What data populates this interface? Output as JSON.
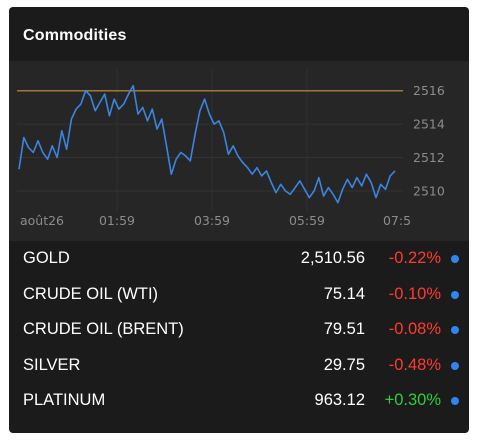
{
  "widget": {
    "title": "Commodities"
  },
  "chart_data": {
    "type": "line",
    "reference_level": 2516,
    "ylim": [
      2508.8,
      2517.3
    ],
    "y_ticks": [
      "2516",
      "2514",
      "2512",
      "2510"
    ],
    "x_ticks": [
      "août26",
      "01:59",
      "03:59",
      "05:59",
      "07:5"
    ],
    "grid": true,
    "colors": {
      "line": "#3a85e0",
      "reference": "#a0783a"
    },
    "series": [
      {
        "values": [
          2511.3,
          2513.2,
          2512.6,
          2512.3,
          2513.0,
          2512.3,
          2511.9,
          2512.7,
          2512.0,
          2513.6,
          2512.5,
          2514.3,
          2514.9,
          2515.2,
          2516.0,
          2515.7,
          2514.8,
          2515.3,
          2515.8,
          2514.5,
          2515.5,
          2514.9,
          2515.2,
          2515.8,
          2516.3,
          2514.6,
          2515.0,
          2514.2,
          2514.9,
          2513.7,
          2514.3,
          2512.7,
          2511.0,
          2511.9,
          2512.3,
          2512.1,
          2511.8,
          2513.4,
          2514.8,
          2515.5,
          2514.6,
          2514.0,
          2514.2,
          2513.5,
          2512.2,
          2512.7,
          2512.1,
          2511.7,
          2511.4,
          2511.0,
          2511.4,
          2510.9,
          2511.2,
          2510.5,
          2509.9,
          2510.4,
          2510.0,
          2509.8,
          2510.2,
          2510.6,
          2510.1,
          2509.6,
          2510.0,
          2510.8,
          2509.7,
          2510.2,
          2509.8,
          2509.3,
          2510.1,
          2510.7,
          2510.2,
          2510.8,
          2510.3,
          2511.0,
          2510.5,
          2509.6,
          2510.4,
          2510.1,
          2510.9,
          2511.2
        ]
      }
    ]
  },
  "commodities": [
    {
      "name": "GOLD",
      "price": "2,510.56",
      "change": "-0.22%",
      "direction": "down"
    },
    {
      "name": "CRUDE OIL (WTI)",
      "price": "75.14",
      "change": "-0.10%",
      "direction": "down"
    },
    {
      "name": "CRUDE OIL (BRENT)",
      "price": "79.51",
      "change": "-0.08%",
      "direction": "down"
    },
    {
      "name": "SILVER",
      "price": "29.75",
      "change": "-0.48%",
      "direction": "down"
    },
    {
      "name": "PLATINUM",
      "price": "963.12",
      "change": "+0.30%",
      "direction": "up"
    }
  ]
}
